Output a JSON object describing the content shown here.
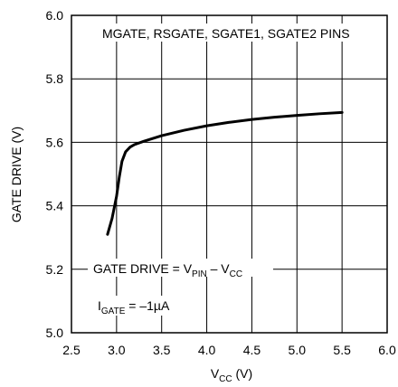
{
  "chart_data": {
    "type": "line",
    "title": "",
    "xlabel": {
      "main": "V",
      "sub": "CC",
      "suffix": " (V)"
    },
    "ylabel": "GATE DRIVE (V)",
    "xlim": [
      2.5,
      6.0
    ],
    "ylim": [
      5.0,
      6.0
    ],
    "x_ticks": [
      "2.5",
      "3.0",
      "3.5",
      "4.0",
      "4.5",
      "5.0",
      "5.5",
      "6.0"
    ],
    "y_ticks": [
      "5.0",
      "5.2",
      "5.4",
      "5.6",
      "5.8",
      "6.0"
    ],
    "x_tick_values": [
      2.5,
      3.0,
      3.5,
      4.0,
      4.5,
      5.0,
      5.5,
      6.0
    ],
    "y_tick_values": [
      5.0,
      5.2,
      5.4,
      5.6,
      5.8,
      6.0
    ],
    "grid": true,
    "series": [
      {
        "x": [
          2.9,
          2.95,
          3.0,
          3.03,
          3.06,
          3.1,
          3.15,
          3.2,
          3.3,
          3.5,
          3.75,
          4.0,
          4.25,
          4.5,
          4.75,
          5.0,
          5.25,
          5.5
        ],
        "y": [
          5.31,
          5.36,
          5.43,
          5.49,
          5.54,
          5.57,
          5.585,
          5.593,
          5.603,
          5.621,
          5.638,
          5.652,
          5.663,
          5.672,
          5.679,
          5.685,
          5.69,
          5.694
        ]
      }
    ],
    "annotations": {
      "pins": "MGATE, RSGATE, SGATE1, SGATE2 PINS",
      "gate_drive_eq": {
        "a": "GATE DRIVE = V",
        "sub1": "PIN",
        "b": " – V",
        "sub2": "CC"
      },
      "igate": {
        "a": "I",
        "sub": "GATE",
        "b": " = –1µA"
      }
    },
    "colors": {
      "line": "#000000",
      "grid": "#000000",
      "background": "#ffffff"
    }
  }
}
